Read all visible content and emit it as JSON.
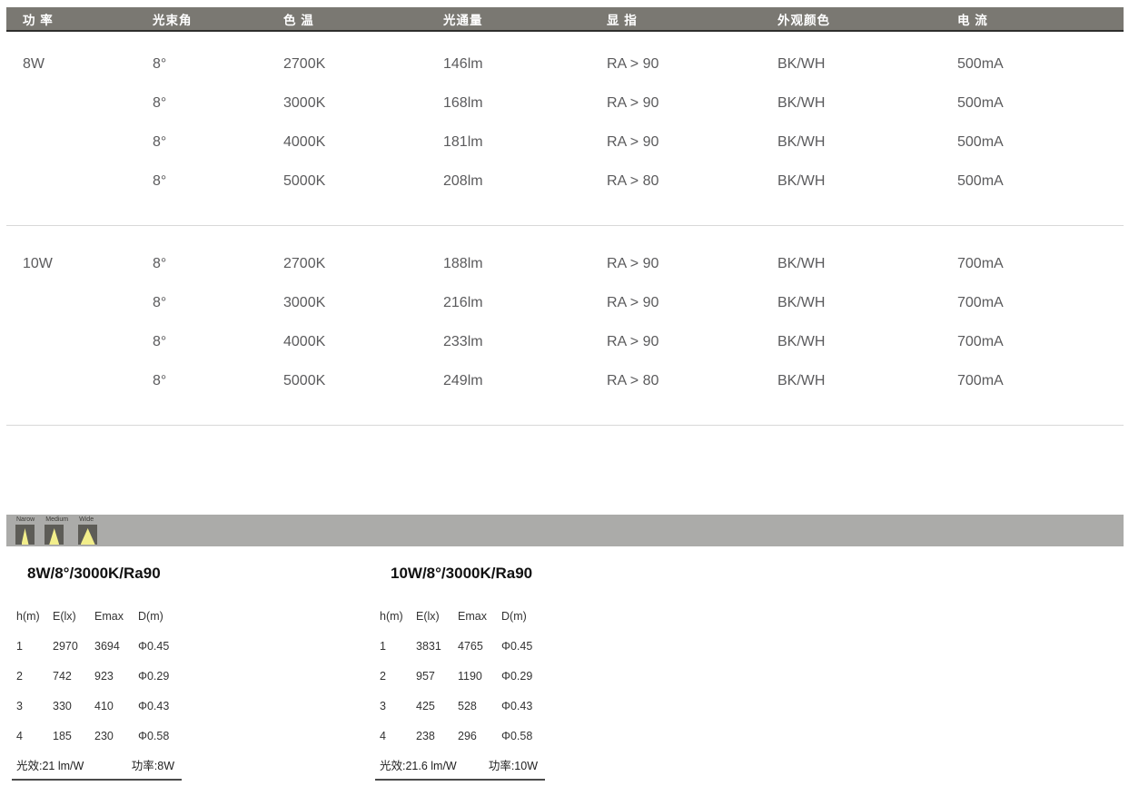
{
  "spec_table": {
    "headers": [
      "功 率",
      "光束角",
      "色 温",
      "光通量",
      "显 指",
      "外观颜色",
      "电 流"
    ],
    "groups": [
      {
        "power": "8W",
        "rows": [
          {
            "beam_angle": "8°",
            "cct": "2700K",
            "flux": "146lm",
            "cri": "RA > 90",
            "finish": "BK/WH",
            "current": "500mA"
          },
          {
            "beam_angle": "8°",
            "cct": "3000K",
            "flux": "168lm",
            "cri": "RA > 90",
            "finish": "BK/WH",
            "current": "500mA"
          },
          {
            "beam_angle": "8°",
            "cct": "4000K",
            "flux": "181lm",
            "cri": "RA > 90",
            "finish": "BK/WH",
            "current": "500mA"
          },
          {
            "beam_angle": "8°",
            "cct": "5000K",
            "flux": "208lm",
            "cri": "RA > 80",
            "finish": "BK/WH",
            "current": "500mA"
          }
        ]
      },
      {
        "power": "10W",
        "rows": [
          {
            "beam_angle": "8°",
            "cct": "2700K",
            "flux": "188lm",
            "cri": "RA > 90",
            "finish": "BK/WH",
            "current": "700mA"
          },
          {
            "beam_angle": "8°",
            "cct": "3000K",
            "flux": "216lm",
            "cri": "RA > 90",
            "finish": "BK/WH",
            "current": "700mA"
          },
          {
            "beam_angle": "8°",
            "cct": "4000K",
            "flux": "233lm",
            "cri": "RA > 90",
            "finish": "BK/WH",
            "current": "700mA"
          },
          {
            "beam_angle": "8°",
            "cct": "5000K",
            "flux": "249lm",
            "cri": "RA > 80",
            "finish": "BK/WH",
            "current": "700mA"
          }
        ]
      }
    ]
  },
  "beam_bar": {
    "icons": [
      {
        "label": "Narow",
        "type": "narrow-beam-icon"
      },
      {
        "label": "Medium",
        "type": "medium-beam-icon"
      },
      {
        "label": "Wide",
        "type": "wide-beam-icon"
      }
    ]
  },
  "photometric_tables": [
    {
      "title": "8W/8°/3000K/Ra90",
      "headers": [
        "h(m)",
        "E(lx)",
        "Emax",
        "D(m)"
      ],
      "rows": [
        [
          "1",
          "2970",
          "3694",
          "Φ0.45"
        ],
        [
          "2",
          "742",
          "923",
          "Φ0.29"
        ],
        [
          "3",
          "330",
          "410",
          "Φ0.43"
        ],
        [
          "4",
          "185",
          "230",
          "Φ0.58"
        ]
      ],
      "footer": {
        "efficacy": "光效:21 lm/W",
        "power": "功率:8W"
      }
    },
    {
      "title": "10W/8°/3000K/Ra90",
      "headers": [
        "h(m)",
        "E(lx)",
        "Emax",
        "D(m)"
      ],
      "rows": [
        [
          "1",
          "3831",
          "4765",
          "Φ0.45"
        ],
        [
          "2",
          "957",
          "1190",
          "Φ0.29"
        ],
        [
          "3",
          "425",
          "528",
          "Φ0.43"
        ],
        [
          "4",
          "238",
          "296",
          "Φ0.58"
        ]
      ],
      "footer": {
        "efficacy": "光效:21.6 lm/W",
        "power": "功率:10W"
      }
    }
  ],
  "colors": {
    "header_bg": "#7a7872",
    "header_text": "#ffffff",
    "header_border": "#2f2f2d",
    "body_text": "#5b5b5d",
    "divider": "#d8d8d8",
    "beam_bar_bg": "#ababa9",
    "beam_square_bg": "#5d5c57",
    "beam_yellow": "#f2ee8b",
    "photo_text": "#333333",
    "title_text": "#111111"
  }
}
